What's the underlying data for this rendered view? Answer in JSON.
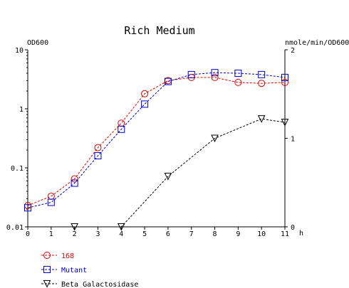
{
  "chart_data": {
    "type": "line",
    "title": "Rich Medium",
    "xlabel": "h",
    "ylabel": "OD600",
    "y2label": "nmole/min/OD600",
    "xlim": [
      0,
      11
    ],
    "ylim": [
      0.01,
      10
    ],
    "y2lim": [
      0,
      2
    ],
    "yscale": "log",
    "grid": false,
    "legend_position": "bottom-left",
    "x_ticks": [
      "0",
      "1",
      "2",
      "3",
      "4",
      "5",
      "6",
      "7",
      "8",
      "9",
      "10",
      "11"
    ],
    "y_ticks": [
      "0.01",
      "0.1",
      "1",
      "10"
    ],
    "y2_ticks": [
      "0",
      "1",
      "2"
    ],
    "series": [
      {
        "name": "168",
        "axis": "left",
        "color": "#e00000",
        "marker": "circle",
        "x": [
          0,
          1,
          2,
          3,
          4,
          5,
          6,
          7,
          8,
          9,
          10,
          11
        ],
        "values": [
          0.023,
          0.033,
          0.065,
          0.22,
          0.57,
          1.8,
          3.0,
          3.4,
          3.4,
          2.8,
          2.7,
          2.8
        ]
      },
      {
        "name": "Mutant",
        "axis": "left",
        "color": "#0000cc",
        "marker": "square",
        "x": [
          0,
          1,
          2,
          3,
          4,
          5,
          6,
          7,
          8,
          9,
          10,
          11
        ],
        "values": [
          0.021,
          0.026,
          0.055,
          0.16,
          0.45,
          1.2,
          2.9,
          3.8,
          4.1,
          4.0,
          3.8,
          3.4
        ]
      },
      {
        "name": "Beta Galactosidase",
        "axis": "right",
        "color": "#000000",
        "marker": "triangle-down",
        "x": [
          2,
          4,
          6,
          8,
          10,
          11
        ],
        "values": [
          0,
          0,
          0.57,
          1.0,
          1.22,
          1.18
        ]
      }
    ]
  }
}
